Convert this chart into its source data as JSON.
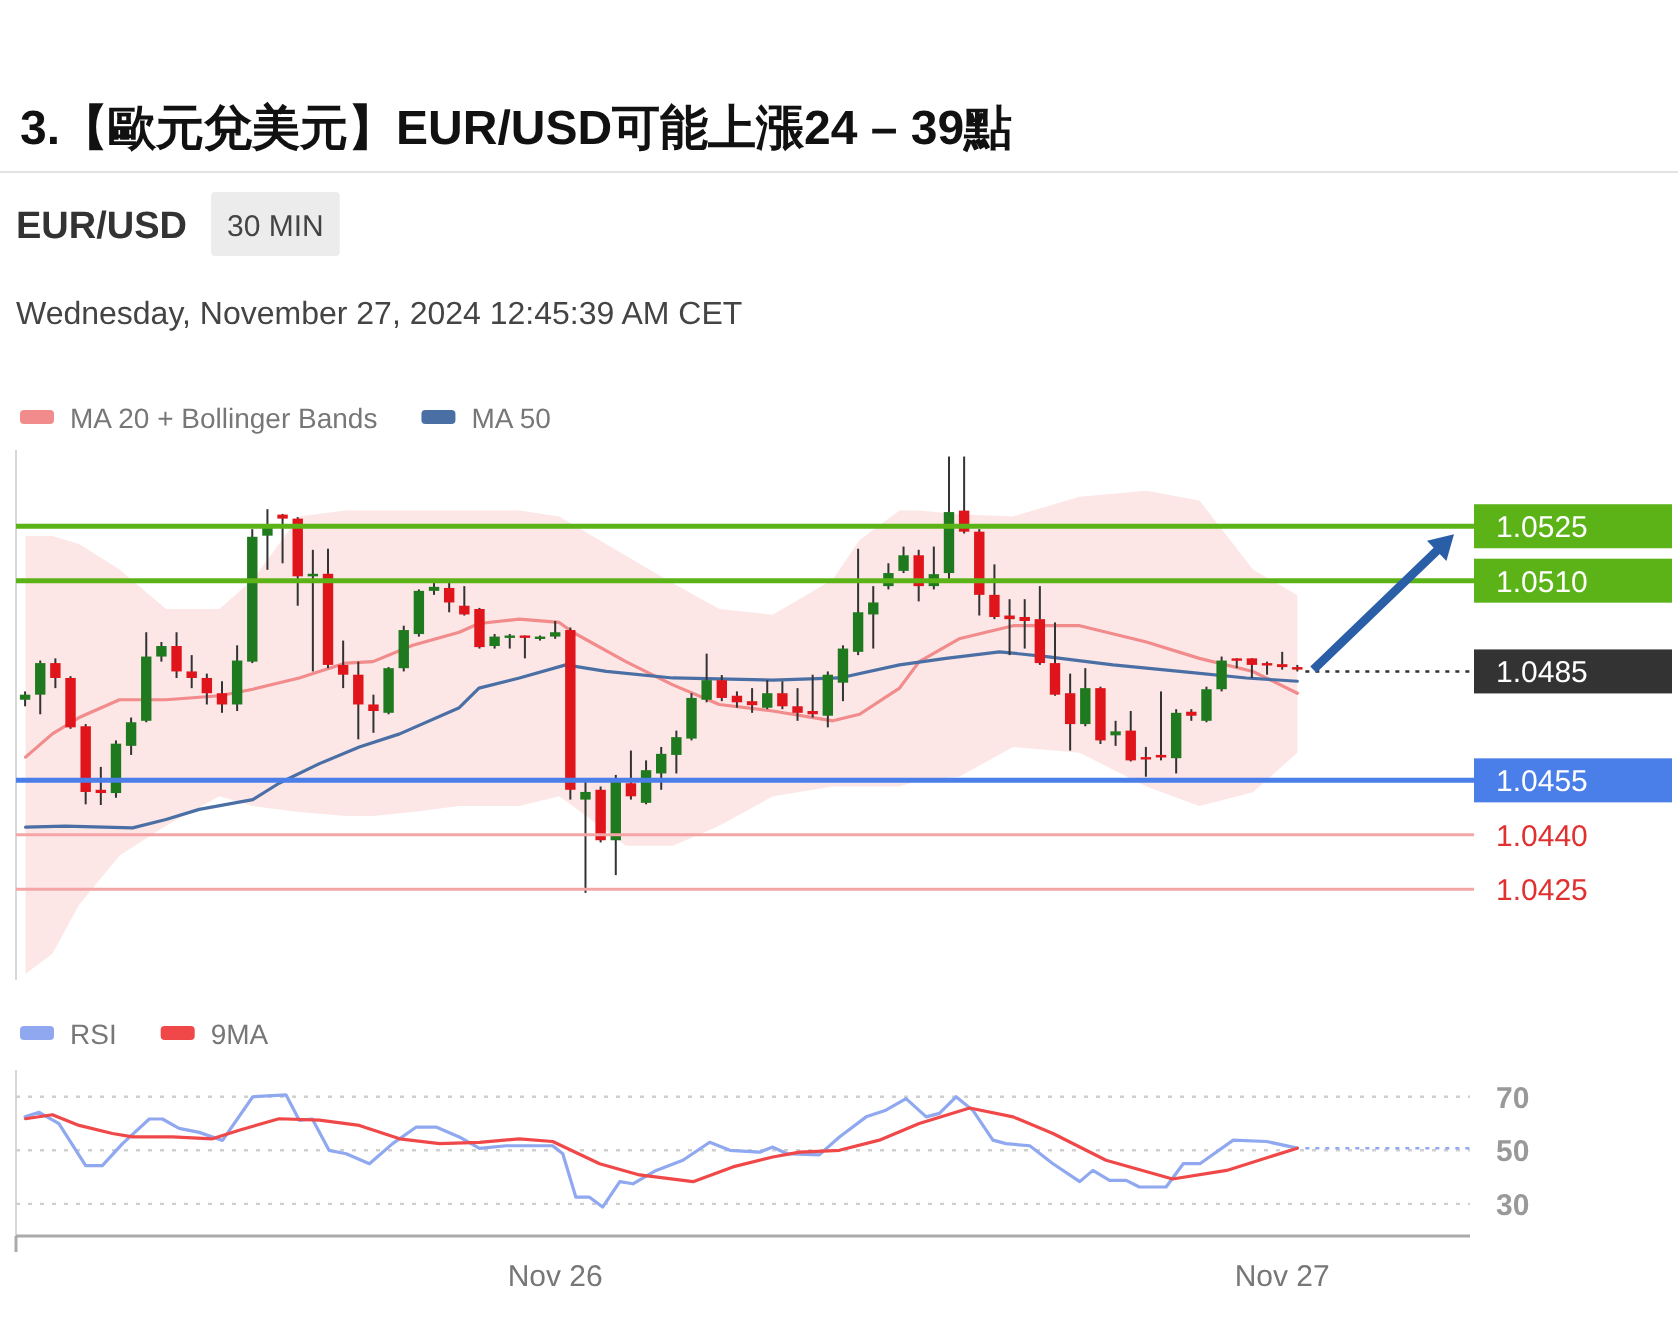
{
  "chart_data": [
    {
      "type": "candlestick",
      "title": "3.【歐元兌美元】EUR/USD可能上漲24 – 39點",
      "subtitle": "EUR/USD",
      "annotations": [
        "30 MIN",
        "Wednesday, November 27, 2024 12:45:39 AM CET"
      ],
      "x": [
        "2024-11-25T06:30",
        "2024-11-25T07:00",
        "2024-11-25T07:30",
        "2024-11-25T08:00",
        "2024-11-25T08:30",
        "2024-11-25T09:00",
        "2024-11-25T09:30",
        "2024-11-25T10:00",
        "2024-11-25T10:30",
        "2024-11-25T11:00",
        "2024-11-25T11:30",
        "2024-11-25T12:00",
        "2024-11-25T12:30",
        "2024-11-25T13:00",
        "2024-11-25T13:30",
        "2024-11-25T14:00",
        "2024-11-25T14:30",
        "2024-11-25T15:00",
        "2024-11-25T15:30",
        "2024-11-25T16:00",
        "2024-11-25T16:30",
        "2024-11-25T17:00",
        "2024-11-25T17:30",
        "2024-11-25T18:00",
        "2024-11-25T18:30",
        "2024-11-25T19:00",
        "2024-11-25T19:30",
        "2024-11-25T20:00",
        "2024-11-25T20:30",
        "2024-11-25T21:00",
        "2024-11-25T21:30",
        "2024-11-25T22:00",
        "2024-11-25T22:30",
        "2024-11-25T23:00",
        "2024-11-25T23:30",
        "2024-11-26T00:00",
        "2024-11-26T00:30",
        "2024-11-26T01:00",
        "2024-11-26T01:30",
        "2024-11-26T02:00",
        "2024-11-26T02:30",
        "2024-11-26T03:00",
        "2024-11-26T03:30",
        "2024-11-26T04:00",
        "2024-11-26T04:30",
        "2024-11-26T05:00",
        "2024-11-26T05:30",
        "2024-11-26T06:00",
        "2024-11-26T06:30",
        "2024-11-26T07:00",
        "2024-11-26T07:30",
        "2024-11-26T08:00",
        "2024-11-26T08:30",
        "2024-11-26T09:00",
        "2024-11-26T09:30",
        "2024-11-26T10:00",
        "2024-11-26T10:30",
        "2024-11-26T11:00",
        "2024-11-26T11:30",
        "2024-11-26T12:00",
        "2024-11-26T12:30",
        "2024-11-26T13:00",
        "2024-11-26T13:30",
        "2024-11-26T14:00",
        "2024-11-26T14:30",
        "2024-11-26T15:00",
        "2024-11-26T15:30",
        "2024-11-26T16:00",
        "2024-11-26T16:30",
        "2024-11-26T17:00",
        "2024-11-26T17:30",
        "2024-11-26T18:00",
        "2024-11-26T18:30",
        "2024-11-26T19:00",
        "2024-11-26T19:30",
        "2024-11-26T20:00",
        "2024-11-26T20:30",
        "2024-11-26T21:00",
        "2024-11-26T21:30",
        "2024-11-26T22:00",
        "2024-11-26T22:30",
        "2024-11-26T23:00",
        "2024-11-26T23:30",
        "2024-11-27T00:00",
        "2024-11-27T00:30"
      ],
      "ohlc": [
        [
          1.04772,
          1.04795,
          1.04754,
          1.04786
        ],
        [
          1.04786,
          1.0488,
          1.04732,
          1.04873
        ],
        [
          1.04873,
          1.04886,
          1.04804,
          1.04832
        ],
        [
          1.04832,
          1.04837,
          1.04692,
          1.04696
        ],
        [
          1.04699,
          1.04705,
          1.04484,
          1.04518
        ],
        [
          1.04524,
          1.04587,
          1.04482,
          1.04515
        ],
        [
          1.04515,
          1.0466,
          1.04502,
          1.04651
        ],
        [
          1.04645,
          1.04723,
          1.0462,
          1.0471
        ],
        [
          1.04714,
          1.04958,
          1.0471,
          1.04891
        ],
        [
          1.04891,
          1.04931,
          1.04877,
          1.0492
        ],
        [
          1.0492,
          1.04958,
          1.04832,
          1.0485
        ],
        [
          1.0485,
          1.04895,
          1.04804,
          1.04832
        ],
        [
          1.04832,
          1.04844,
          1.04759,
          1.0479
        ],
        [
          1.0479,
          1.04823,
          1.04736,
          1.04759
        ],
        [
          1.04759,
          1.04922,
          1.04741,
          1.0488
        ],
        [
          1.04877,
          1.05242,
          1.04873,
          1.05221
        ],
        [
          1.05224,
          1.05297,
          1.0513,
          1.05253
        ],
        [
          1.05282,
          1.05284,
          1.05148,
          1.05271
        ],
        [
          1.05271,
          1.05275,
          1.05031,
          1.05112
        ],
        [
          1.05112,
          1.05185,
          1.0485,
          1.05119
        ],
        [
          1.05119,
          1.05188,
          1.04859,
          1.04868
        ],
        [
          1.04868,
          1.04935,
          1.04804,
          1.04841
        ],
        [
          1.04841,
          1.04877,
          1.04663,
          1.04759
        ],
        [
          1.04759,
          1.04786,
          1.04681,
          1.04741
        ],
        [
          1.04736,
          1.04862,
          1.04732,
          1.04859
        ],
        [
          1.04859,
          1.04976,
          1.0485,
          1.04964
        ],
        [
          1.04953,
          1.05076,
          1.04946,
          1.05072
        ],
        [
          1.05072,
          1.05094,
          1.05061,
          1.05083
        ],
        [
          1.0508,
          1.05094,
          1.05013,
          1.0504
        ],
        [
          1.05031,
          1.05085,
          1.05004,
          1.05007
        ],
        [
          1.05022,
          1.05025,
          1.04913,
          1.04917
        ],
        [
          1.0492,
          1.04953,
          1.04913,
          1.04946
        ],
        [
          1.04946,
          1.04953,
          1.04913,
          1.04949
        ],
        [
          1.04949,
          1.04949,
          1.04886,
          1.04947
        ],
        [
          1.04944,
          1.04949,
          1.04935,
          1.04946
        ],
        [
          1.04946,
          1.04989,
          1.0494,
          1.04958
        ],
        [
          1.04964,
          1.04971,
          1.04497,
          1.04524
        ],
        [
          1.04497,
          1.04555,
          1.0424,
          1.04518
        ],
        [
          1.04524,
          1.04533,
          1.04379,
          1.04385
        ],
        [
          1.04385,
          1.04565,
          1.04289,
          1.04551
        ],
        [
          1.04542,
          1.04632,
          1.04497,
          1.04506
        ],
        [
          1.04488,
          1.04605,
          1.04484,
          1.04578
        ],
        [
          1.04569,
          1.04642,
          1.04524,
          1.04623
        ],
        [
          1.0462,
          1.04687,
          1.04569,
          1.04669
        ],
        [
          1.04665,
          1.0479,
          1.0466,
          1.04777
        ],
        [
          1.04772,
          1.04899,
          1.04765,
          1.04826
        ],
        [
          1.04826,
          1.0484,
          1.04768,
          1.04777
        ],
        [
          1.04783,
          1.04795,
          1.0475,
          1.04765
        ],
        [
          1.04768,
          1.04804,
          1.04736,
          1.04757
        ],
        [
          1.0475,
          1.04826,
          1.04746,
          1.0479
        ],
        [
          1.0479,
          1.04823,
          1.04746,
          1.04754
        ],
        [
          1.04754,
          1.04804,
          1.04714,
          1.04736
        ],
        [
          1.04741,
          1.04841,
          1.04723,
          1.04732
        ],
        [
          1.04728,
          1.0485,
          1.04696,
          1.04841
        ],
        [
          1.04819,
          1.04922,
          1.04768,
          1.04913
        ],
        [
          1.04904,
          1.05188,
          1.04895,
          1.05013
        ],
        [
          1.05007,
          1.05085,
          1.04913,
          1.0504
        ],
        [
          1.05085,
          1.05148,
          1.05076,
          1.05121
        ],
        [
          1.05127,
          1.05194,
          1.05121,
          1.0517
        ],
        [
          1.0517,
          1.05185,
          1.05043,
          1.05085
        ],
        [
          1.05085,
          1.05194,
          1.05076,
          1.05118
        ],
        [
          1.05121,
          1.05442,
          1.05094,
          1.05289
        ],
        [
          1.05293,
          1.05442,
          1.0523,
          1.05235
        ],
        [
          1.05235,
          1.05242,
          1.05004,
          1.05061
        ],
        [
          1.05061,
          1.05145,
          1.04994,
          1.05
        ],
        [
          1.05004,
          1.05049,
          1.04895,
          1.04994
        ],
        [
          1.05,
          1.05049,
          1.04913,
          1.04989
        ],
        [
          1.04994,
          1.05085,
          1.04868,
          1.04873
        ],
        [
          1.04873,
          1.04985,
          1.04783,
          1.04786
        ],
        [
          1.0479,
          1.04844,
          1.04632,
          1.04705
        ],
        [
          1.04705,
          1.04859,
          1.04699,
          1.04804
        ],
        [
          1.04804,
          1.04808,
          1.0465,
          1.0466
        ],
        [
          1.04674,
          1.04714,
          1.04645,
          1.04685
        ],
        [
          1.04687,
          1.04741,
          1.04602,
          1.04605
        ],
        [
          1.04614,
          1.04642,
          1.0456,
          1.04609
        ],
        [
          1.0462,
          1.04795,
          1.04605,
          1.04613
        ],
        [
          1.04611,
          1.04746,
          1.04569,
          1.04736
        ],
        [
          1.04739,
          1.04746,
          1.04714,
          1.04728
        ],
        [
          1.04714,
          1.04808,
          1.0471,
          1.04801
        ],
        [
          1.04801,
          1.04891,
          1.04795,
          1.0488
        ],
        [
          1.04886,
          1.04886,
          1.04859,
          1.0488
        ],
        [
          1.04886,
          1.04886,
          1.04832,
          1.04868
        ],
        [
          1.04873,
          1.04877,
          1.04841,
          1.04868
        ],
        [
          1.0487,
          1.04904,
          1.04855,
          1.04862
        ],
        [
          1.04862,
          1.04868,
          1.0485,
          1.04855
        ]
      ],
      "series": [
        {
          "name": "MA 20 + Bollinger Bands",
          "type": "line",
          "color": "#f28b8b",
          "x": [
            "2024-11-25T06:31",
            "2024-11-25T07:24",
            "2024-11-25T08:17",
            "2024-11-25T09:37",
            "2024-11-25T11:09",
            "2024-11-25T12:55",
            "2024-11-25T14:01",
            "2024-11-25T15:33",
            "2024-11-25T17:05",
            "2024-11-25T17:59",
            "2024-11-25T19:18",
            "2024-11-25T20:50",
            "2024-11-25T21:29",
            "2024-11-25T22:49",
            "2024-11-26T00:08",
            "2024-11-26T00:35",
            "2024-11-26T02:20",
            "2024-11-26T03:53",
            "2024-11-26T05:25",
            "2024-11-26T07:11",
            "2024-11-26T09:10",
            "2024-11-26T10:03",
            "2024-11-26T11:22",
            "2024-11-26T12:01",
            "2024-11-26T13:20",
            "2024-11-26T15:07",
            "2024-11-26T17:19",
            "2024-11-26T19:31",
            "2024-11-26T21:16",
            "2024-11-26T23:02",
            "2024-11-27T00:30"
          ],
          "values": [
            1.04614,
            1.04678,
            1.04723,
            1.04772,
            1.04772,
            1.04783,
            1.04801,
            1.04832,
            1.04873,
            1.04877,
            1.04922,
            1.04958,
            1.04982,
            1.04994,
            1.04985,
            1.04958,
            1.04877,
            1.04813,
            1.04759,
            1.04741,
            1.04714,
            1.04732,
            1.04804,
            1.04877,
            1.0494,
            1.04976,
            1.04976,
            1.04931,
            1.04886,
            1.0485,
            1.0479
          ],
          "upper": [
            1.05223,
            1.05223,
            1.05201,
            1.05131,
            1.05022,
            1.05022,
            1.05103,
            1.05277,
            1.05293,
            1.05293,
            1.05293,
            1.05293,
            1.05293,
            1.05293,
            1.05277,
            1.05255,
            1.05169,
            1.05093,
            1.05022,
            1.05006,
            1.05103,
            1.05212,
            1.05293,
            1.05293,
            1.05283,
            1.05277,
            1.05331,
            1.05348,
            1.05321,
            1.05131,
            1.0506
          ],
          "lower": [
            1.04017,
            1.04072,
            1.04207,
            1.04343,
            1.04425,
            1.04506,
            1.04479,
            1.04463,
            1.04452,
            1.04452,
            1.04463,
            1.04479,
            1.04479,
            1.04479,
            1.04506,
            1.04479,
            1.0437,
            1.0437,
            1.04425,
            1.04506,
            1.04533,
            1.04533,
            1.04533,
            1.0455,
            1.0456,
            1.04642,
            1.04626,
            1.04533,
            1.04479,
            1.04517,
            1.04626
          ]
        },
        {
          "name": "MA 50",
          "type": "line",
          "color": "#4a6fa5",
          "x": [
            "2024-11-25T06:31",
            "2024-11-25T07:50",
            "2024-11-25T10:03",
            "2024-11-25T11:09",
            "2024-11-25T12:15",
            "2024-11-25T14:01",
            "2024-11-25T14:53",
            "2024-11-25T16:13",
            "2024-11-25T17:32",
            "2024-11-25T18:52",
            "2024-11-25T20:50",
            "2024-11-25T21:29",
            "2024-11-25T22:49",
            "2024-11-26T00:21",
            "2024-11-26T01:41",
            "2024-11-26T03:53",
            "2024-11-26T07:11",
            "2024-11-26T09:23",
            "2024-11-26T11:22",
            "2024-11-26T12:54",
            "2024-11-26T14:40",
            "2024-11-26T16:13",
            "2024-11-26T18:25",
            "2024-11-26T20:37",
            "2024-11-26T22:49",
            "2024-11-27T00:30"
          ],
          "values": [
            1.04421,
            1.04424,
            1.04419,
            1.04442,
            1.0447,
            1.04497,
            1.04542,
            1.04596,
            1.04642,
            1.04678,
            1.0475,
            1.04804,
            1.04832,
            1.04868,
            1.0485,
            1.04832,
            1.04826,
            1.04832,
            1.04868,
            1.04886,
            1.04904,
            1.04891,
            1.04868,
            1.0485,
            1.04832,
            1.04823
          ]
        }
      ],
      "xlim": [
        "2024-11-25T06:12",
        "2024-11-27T06:12"
      ],
      "ylim": [
        1.04,
        1.0546
      ],
      "legend": "top left",
      "ref_lines": [
        {
          "axis": "y",
          "value": 1.0525,
          "label": "1.0525",
          "color": "#5bb318",
          "line_style": "solid"
        },
        {
          "axis": "y",
          "value": 1.051,
          "label": "1.0510",
          "color": "#5bb318",
          "line_style": "solid"
        },
        {
          "axis": "y",
          "value": 1.0485,
          "label": "1.0485",
          "color": "#333333",
          "line_style": "dotted"
        },
        {
          "axis": "y",
          "value": 1.0455,
          "label": "1.0455",
          "color": "#4a7ee8",
          "line_style": "solid"
        },
        {
          "axis": "y",
          "value": 1.044,
          "label": "1.0440",
          "color": "#f4a6a6",
          "line_style": "solid"
        },
        {
          "axis": "y",
          "value": 1.0425,
          "label": "1.0425",
          "color": "#f4a6a6",
          "line_style": "solid"
        }
      ]
    },
    {
      "type": "line",
      "series": [
        {
          "name": "RSI",
          "type": "line",
          "color": "#8fa8ef",
          "x": [
            "2024-11-25T06:30",
            "2024-11-25T06:58",
            "2024-11-25T07:37",
            "2024-11-25T08:30",
            "2024-11-25T09:03",
            "2024-11-25T09:43",
            "2024-11-25T10:36",
            "2024-11-25T11:02",
            "2024-11-25T11:35",
            "2024-11-25T12:15",
            "2024-11-25T13:01",
            "2024-11-25T14:01",
            "2024-11-25T15:07",
            "2024-11-25T15:33",
            "2024-11-25T15:59",
            "2024-11-25T16:32",
            "2024-11-25T17:06",
            "2024-11-25T17:52",
            "2024-11-25T18:38",
            "2024-11-25T19:25",
            "2024-11-25T20:04",
            "2024-11-25T20:50",
            "2024-11-25T21:30",
            "2024-11-25T22:23",
            "2024-11-25T23:55",
            "2024-11-26T00:15",
            "2024-11-26T00:41",
            "2024-11-26T01:08",
            "2024-11-26T01:34",
            "2024-11-26T02:08",
            "2024-11-26T02:34",
            "2024-11-26T03:20",
            "2024-11-26T04:13",
            "2024-11-26T05:06",
            "2024-11-26T05:46",
            "2024-11-26T06:45",
            "2024-11-26T07:11",
            "2024-11-26T07:38",
            "2024-11-26T08:43",
            "2024-11-26T09:23",
            "2024-11-26T10:16",
            "2024-11-26T10:55",
            "2024-11-26T11:35",
            "2024-11-26T12:15",
            "2024-11-26T12:41",
            "2024-11-26T13:14",
            "2024-11-26T13:47",
            "2024-11-26T14:27",
            "2024-11-26T14:53",
            "2024-11-26T15:40",
            "2024-11-26T16:26",
            "2024-11-26T17:19",
            "2024-11-26T17:45",
            "2024-11-26T18:18",
            "2024-11-26T18:51",
            "2024-11-26T19:17",
            "2024-11-26T20:10",
            "2024-11-26T20:44",
            "2024-11-26T21:17",
            "2024-11-26T22:23",
            "2024-11-26T23:29",
            "2024-11-27T00:30"
          ],
          "values": [
            62.5,
            64.2,
            60,
            44.3,
            44.3,
            52.5,
            61.7,
            61.7,
            58.2,
            56.7,
            53.7,
            70,
            70.7,
            61.2,
            61.7,
            50,
            48.7,
            45,
            52.5,
            58.7,
            58.7,
            55,
            50.7,
            51.7,
            51.7,
            48.7,
            32.5,
            32.5,
            28.8,
            38.3,
            37.5,
            42.5,
            46.3,
            53,
            50,
            49.3,
            51.2,
            48.8,
            48.3,
            55,
            62.5,
            65,
            69.3,
            62.5,
            63.8,
            70,
            65,
            53.8,
            52.5,
            51.7,
            45,
            38.3,
            42.5,
            38.8,
            38.8,
            36.3,
            36.3,
            45,
            45,
            53.8,
            53.3,
            50.8
          ]
        },
        {
          "name": "9MA",
          "type": "line",
          "color": "#f04848",
          "x": [
            "2024-11-25T06:31",
            "2024-11-25T07:24",
            "2024-11-25T08:17",
            "2024-11-25T09:23",
            "2024-11-25T10:03",
            "2024-11-25T11:22",
            "2024-11-25T12:41",
            "2024-11-25T13:34",
            "2024-11-25T14:53",
            "2024-11-25T16:13",
            "2024-11-25T17:32",
            "2024-11-25T18:52",
            "2024-11-25T20:11",
            "2024-11-25T21:30",
            "2024-11-25T22:49",
            "2024-11-25T23:55",
            "2024-11-26T01:28",
            "2024-11-26T02:47",
            "2024-11-26T04:33",
            "2024-11-26T05:52",
            "2024-11-26T07:11",
            "2024-11-26T08:04",
            "2024-11-26T09:23",
            "2024-11-26T10:42",
            "2024-11-26T12:01",
            "2024-11-26T13:41",
            "2024-11-26T15:07",
            "2024-11-26T16:26",
            "2024-11-26T18:11",
            "2024-11-26T20:23",
            "2024-11-26T22:10",
            "2024-11-27T00:30"
          ],
          "values": [
            61.8,
            63.3,
            59.3,
            56.3,
            55,
            55,
            54.3,
            57.5,
            61.8,
            61.3,
            59.3,
            54.3,
            52.5,
            53,
            54.3,
            53.3,
            45,
            40.8,
            38.3,
            43.8,
            47.5,
            49.3,
            50,
            53.8,
            60,
            65.8,
            62.5,
            56.3,
            46.3,
            39.3,
            42.5,
            50.8
          ]
        }
      ],
      "xlim": [
        "2024-11-25T06:12",
        "2024-11-27T06:12"
      ],
      "xticks": [
        {
          "value": "2024-11-26",
          "label": "Nov 26"
        },
        {
          "value": "2024-11-27",
          "label": "Nov 27"
        }
      ],
      "ylim": [
        18,
        80
      ],
      "yticks": [
        30,
        50,
        70
      ],
      "grid": "y",
      "legend": "top left",
      "ref_lines": [
        {
          "axis": "y",
          "value": 50.8,
          "color": "#8fa8ef",
          "line_style": "dotted"
        }
      ]
    }
  ]
}
